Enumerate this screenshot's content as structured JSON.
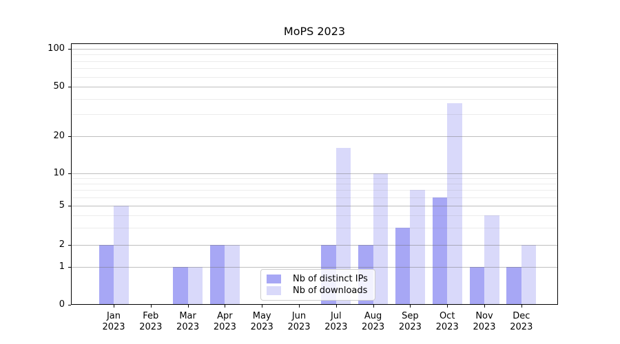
{
  "title": "MoPS 2023",
  "chart_data": {
    "type": "bar",
    "title": "MoPS 2023",
    "categories": [
      "Jan 2023",
      "Feb 2023",
      "Mar 2023",
      "Apr 2023",
      "May 2023",
      "Jun 2023",
      "Jul 2023",
      "Aug 2023",
      "Sep 2023",
      "Oct 2023",
      "Nov 2023",
      "Dec 2023"
    ],
    "months": [
      "Jan",
      "Feb",
      "Mar",
      "Apr",
      "May",
      "Jun",
      "Jul",
      "Aug",
      "Sep",
      "Oct",
      "Nov",
      "Dec"
    ],
    "year": "2023",
    "series": [
      {
        "name": "Nb of distinct IPs",
        "color": "#a7a7f5",
        "values": [
          2,
          0,
          1,
          2,
          0,
          0,
          2,
          2,
          3,
          6,
          1,
          1
        ]
      },
      {
        "name": "Nb of downloads",
        "color": "#d9d9fa",
        "values": [
          5,
          0,
          1,
          2,
          0,
          0,
          16,
          10,
          7,
          37,
          4,
          2
        ]
      }
    ],
    "xlabel": "",
    "ylabel": "",
    "yscale": "log-like with 0 baseline",
    "y_major_ticks": [
      0,
      1,
      2,
      5,
      10,
      20,
      50,
      100
    ],
    "y_minor_gridlines": [
      3,
      4,
      6,
      7,
      8,
      9,
      30,
      40,
      60,
      70,
      80,
      90
    ],
    "ylim": [
      0,
      110
    ],
    "grid": true,
    "legend_position": "lower center inside plot"
  },
  "legend": {
    "items": [
      {
        "label": "Nb of distinct IPs",
        "color": "#a7a7f5"
      },
      {
        "label": "Nb of downloads",
        "color": "#d9d9fa"
      }
    ]
  }
}
